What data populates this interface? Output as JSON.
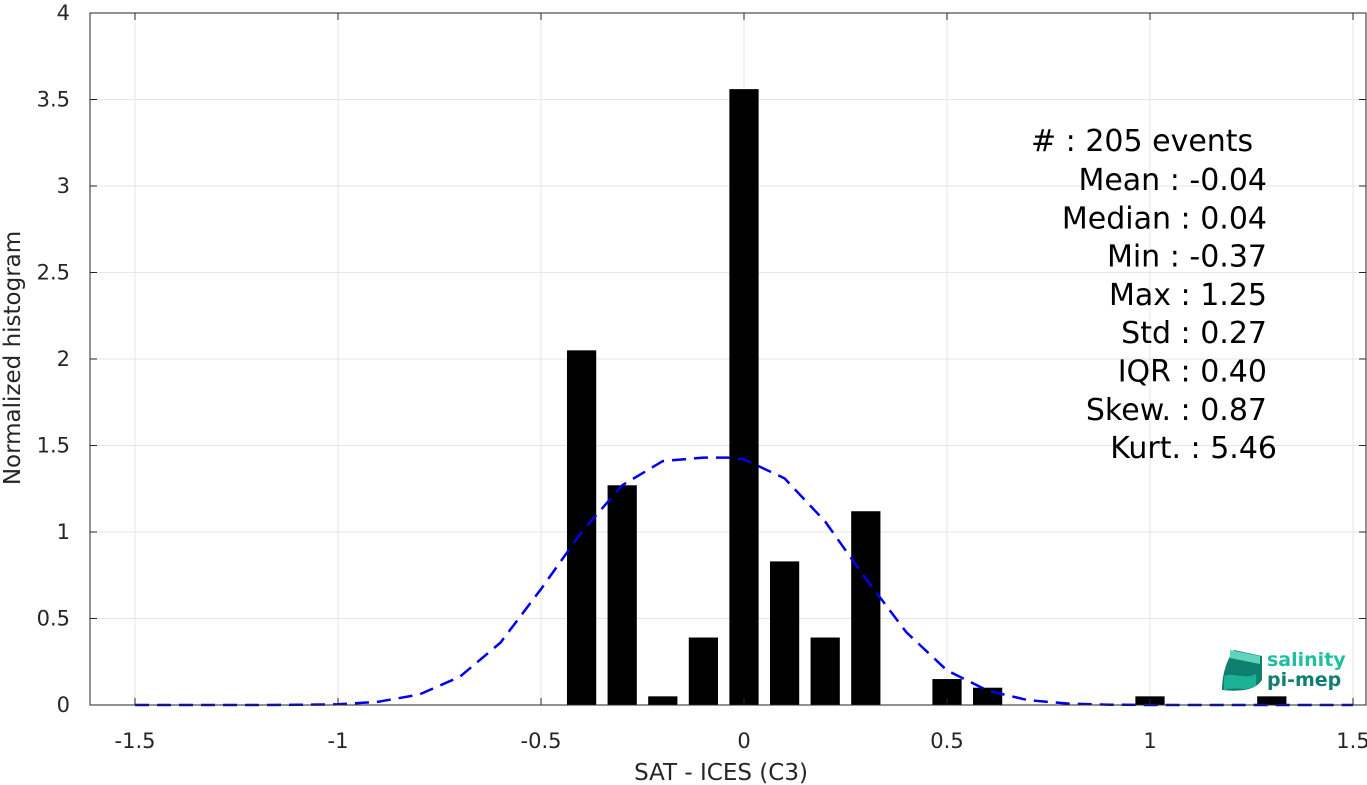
{
  "chart_data": {
    "type": "bar",
    "xlabel": "SAT - ICES (C3)",
    "ylabel": "Normalized histogram",
    "xlim": [
      -1.5,
      1.5
    ],
    "ylim": [
      0,
      4
    ],
    "x_ticks": [
      -1.5,
      -1,
      -0.5,
      0,
      0.5,
      1,
      1.5
    ],
    "x_tick_labels": [
      "-1.5",
      "-1",
      "-0.5",
      "0",
      "0.5",
      "1",
      "1.5"
    ],
    "y_ticks": [
      0,
      0.5,
      1,
      1.5,
      2,
      2.5,
      3,
      3.5,
      4
    ],
    "y_tick_labels": [
      "0",
      "0.5",
      "1",
      "1.5",
      "2",
      "2.5",
      "3",
      "3.5",
      "4"
    ],
    "grid": true,
    "bar_color": "#000000",
    "bars": {
      "x": [
        -0.4,
        -0.3,
        -0.2,
        -0.1,
        0.0,
        0.1,
        0.2,
        0.3,
        0.5,
        0.6,
        1.0,
        1.3
      ],
      "values": [
        2.05,
        1.27,
        0.05,
        0.39,
        3.56,
        0.83,
        0.39,
        1.12,
        0.15,
        0.1,
        0.05,
        0.05
      ]
    },
    "fit_curve": {
      "style": "dashed",
      "color": "#0000ee",
      "x": [
        -1.5,
        -1.4,
        -1.3,
        -1.2,
        -1.1,
        -1.0,
        -0.9,
        -0.8,
        -0.7,
        -0.6,
        -0.5,
        -0.4,
        -0.3,
        -0.2,
        -0.1,
        -0.04,
        0.0,
        0.1,
        0.2,
        0.3,
        0.4,
        0.5,
        0.6,
        0.7,
        0.8,
        0.9,
        1.0,
        1.1,
        1.2,
        1.3,
        1.4,
        1.5
      ],
      "y": [
        0.0,
        0.0,
        0.0,
        0.0,
        0.001,
        0.004,
        0.019,
        0.06,
        0.163,
        0.36,
        0.67,
        1.0,
        1.27,
        1.41,
        1.43,
        1.43,
        1.42,
        1.31,
        1.06,
        0.73,
        0.42,
        0.2,
        0.083,
        0.028,
        0.008,
        0.002,
        0.0,
        0.0,
        0.0,
        0.0,
        0.0,
        0.0
      ]
    },
    "stats": [
      "#  : 205 events",
      "Mean : -0.04",
      "Median : 0.04",
      "Min : -0.37",
      "Max : 1.25",
      "Std : 0.27",
      "IQR : 0.40",
      "Skew. : 0.87",
      "Kurt. : 5.46"
    ]
  },
  "logo": {
    "line1": "salinity",
    "line2": "pi-mep",
    "color_light": "#1fbfa0",
    "color_dark": "#0f7f70"
  }
}
